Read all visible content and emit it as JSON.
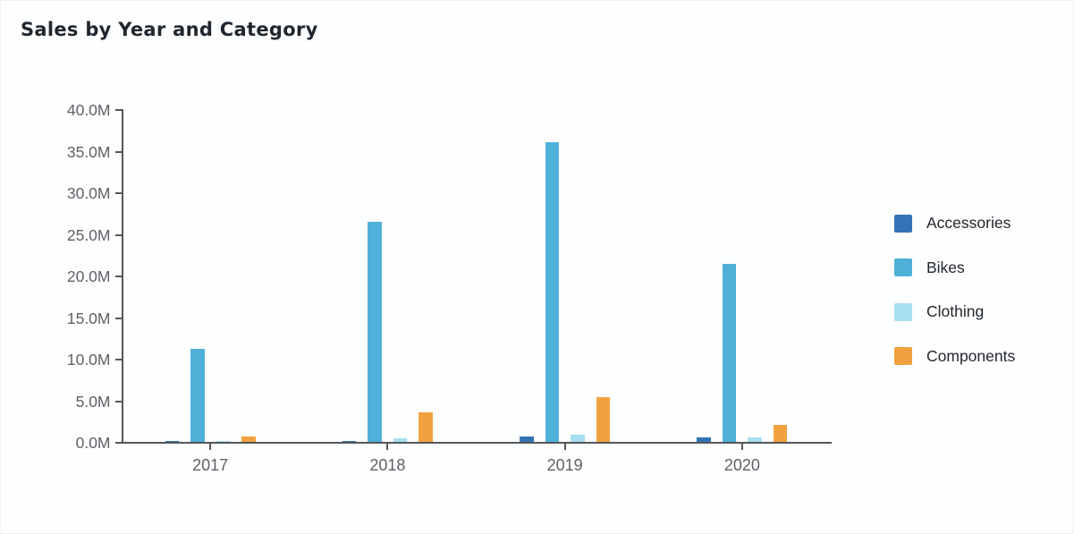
{
  "page": {
    "title": "Sales by Year and Category",
    "background_color": "#fdfefe",
    "axis_color": "#53575c",
    "tick_label_color": "#5d6167"
  },
  "chart_data": {
    "type": "bar",
    "title": "Sales by Year and Category",
    "categories": [
      "2017",
      "2018",
      "2019",
      "2020"
    ],
    "series": [
      {
        "name": "Accessories",
        "color": "#3274b5",
        "values": [
          0.05,
          0.15,
          0.65,
          0.5
        ]
      },
      {
        "name": "Bikes",
        "color": "#4fb0d8",
        "values": [
          11.2,
          26.5,
          36.0,
          21.4
        ]
      },
      {
        "name": "Clothing",
        "color": "#a6dff0",
        "values": [
          0.1,
          0.45,
          0.9,
          0.55
        ]
      },
      {
        "name": "Components",
        "color": "#f0a23e",
        "values": [
          0.6,
          3.6,
          5.4,
          2.0
        ]
      }
    ],
    "unit": "M",
    "xlabel": "",
    "ylabel": "",
    "ylim": [
      0,
      40
    ],
    "ytick_step": 5,
    "ytick_labels": [
      "0.0M",
      "5.0M",
      "10.0M",
      "15.0M",
      "20.0M",
      "25.0M",
      "30.0M",
      "35.0M",
      "40.0M"
    ],
    "grid": false,
    "legend_position": "right"
  },
  "legend": {
    "items": [
      {
        "label": "Accessories",
        "color": "#3274b5"
      },
      {
        "label": "Bikes",
        "color": "#4fb0d8"
      },
      {
        "label": "Clothing",
        "color": "#a6dff0"
      },
      {
        "label": "Components",
        "color": "#f0a23e"
      }
    ]
  }
}
